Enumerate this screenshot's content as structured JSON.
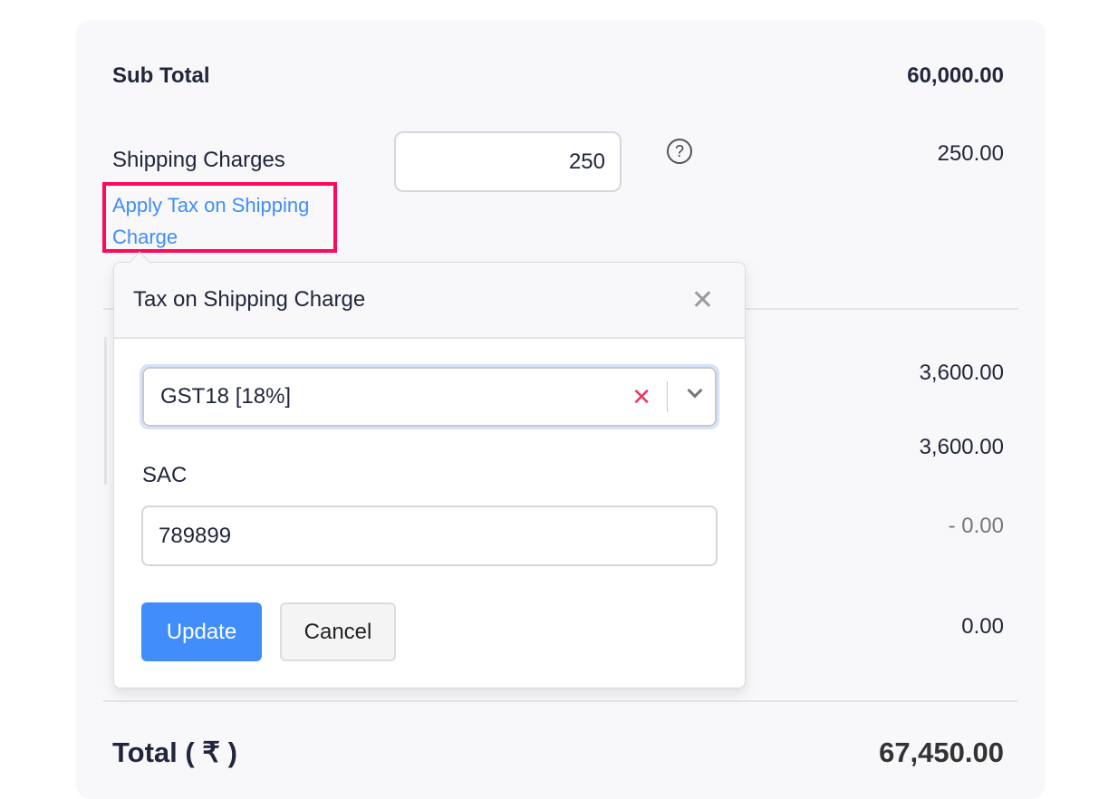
{
  "subtotal": {
    "label": "Sub Total",
    "value": "60,000.00"
  },
  "shipping": {
    "label": "Shipping Charges",
    "input_value": "250",
    "value": "250.00",
    "apply_tax_link": "Apply Tax on Shipping Charge",
    "help_icon": "question-circle-icon"
  },
  "hidden_rows": [
    "3,600.00",
    "3,600.00",
    "- 0.00",
    "0.00"
  ],
  "popover": {
    "title": "Tax on Shipping Charge",
    "close_icon": "close-icon",
    "tax_select": "GST18 [18%]",
    "sac_label": "SAC",
    "sac_value": "789899",
    "update_label": "Update",
    "cancel_label": "Cancel"
  },
  "total": {
    "label": "Total ( ₹ )",
    "value": "67,450.00"
  },
  "colors": {
    "accent": "#408dfb",
    "highlight": "#ff0a5a",
    "clear": "#e8385e"
  }
}
